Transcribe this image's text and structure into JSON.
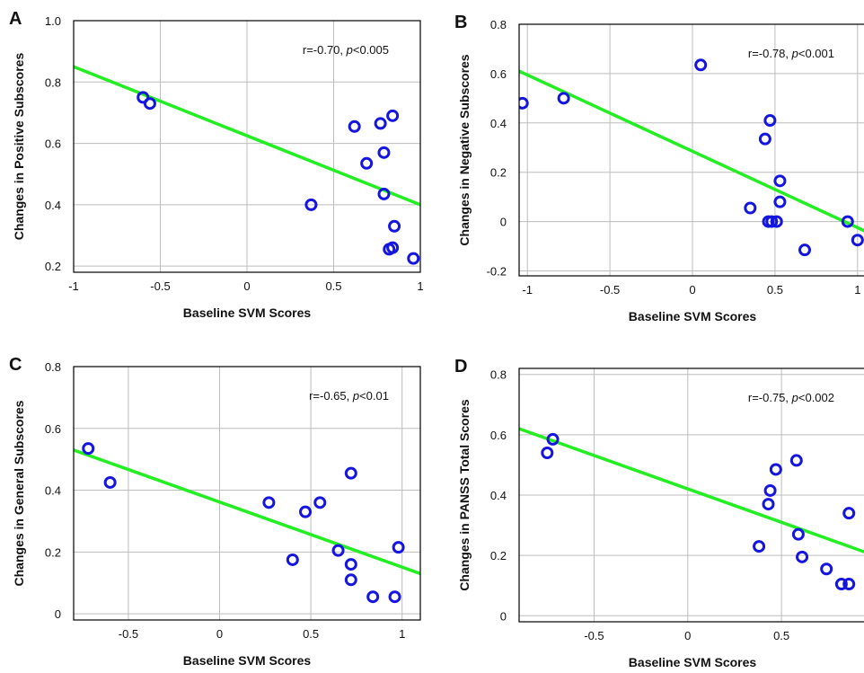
{
  "chart_data": [
    {
      "panel": "A",
      "type": "scatter",
      "xlabel": "Baseline SVM Scores",
      "ylabel": "Changes in Positive Subscores",
      "xlim": [
        -1,
        1
      ],
      "ylim": [
        0.18,
        1.0
      ],
      "xticks": [
        -1,
        -0.5,
        0,
        0.5,
        1
      ],
      "xtick_labels": [
        "-1",
        "-0.5",
        "0",
        "0.5",
        "1"
      ],
      "yticks": [
        0.2,
        0.4,
        0.6,
        0.8,
        1.0
      ],
      "ytick_labels": [
        "0.2",
        "0.4",
        "0.6",
        "0.8",
        "1.0"
      ],
      "annotation_r": "r=-0.70, ",
      "annotation_p": "p",
      "annotation_rest": "<0.005",
      "grid": true,
      "points": [
        [
          -0.6,
          0.75
        ],
        [
          -0.56,
          0.73
        ],
        [
          0.37,
          0.4
        ],
        [
          0.62,
          0.655
        ],
        [
          0.69,
          0.535
        ],
        [
          0.77,
          0.665
        ],
        [
          0.79,
          0.57
        ],
        [
          0.79,
          0.435
        ],
        [
          0.84,
          0.69
        ],
        [
          0.85,
          0.33
        ],
        [
          0.82,
          0.255
        ],
        [
          0.84,
          0.26
        ],
        [
          0.96,
          0.225
        ]
      ],
      "fit_line": [
        [
          -1,
          0.85
        ],
        [
          1,
          0.4
        ]
      ],
      "point_color": "#1515e0",
      "line_color": "#22ee22"
    },
    {
      "panel": "B",
      "type": "scatter",
      "xlabel": "Baseline SVM Scores",
      "ylabel": "Changes in Negative Subscores",
      "xlim": [
        -1.05,
        1.05
      ],
      "ylim": [
        -0.22,
        0.8
      ],
      "xticks": [
        -1,
        -0.5,
        0,
        0.5,
        1
      ],
      "xtick_labels": [
        "-1",
        "-0.5",
        "0",
        "0.5",
        "1"
      ],
      "yticks": [
        -0.2,
        0,
        0.2,
        0.4,
        0.6,
        0.8
      ],
      "ytick_labels": [
        "-0.2",
        "0",
        "0.2",
        "0.4",
        "0.6",
        "0.8"
      ],
      "annotation_r": "r=-0.78, ",
      "annotation_p": "p",
      "annotation_rest": "<0.001",
      "grid": true,
      "points": [
        [
          -1.03,
          0.48
        ],
        [
          -0.78,
          0.5
        ],
        [
          0.05,
          0.635
        ],
        [
          0.47,
          0.41
        ],
        [
          0.44,
          0.335
        ],
        [
          0.53,
          0.165
        ],
        [
          0.53,
          0.08
        ],
        [
          0.35,
          0.055
        ],
        [
          0.46,
          0.0
        ],
        [
          0.48,
          0.0
        ],
        [
          0.51,
          0.0
        ],
        [
          0.68,
          -0.115
        ],
        [
          0.94,
          0.0
        ],
        [
          1.0,
          -0.075
        ]
      ],
      "fit_line": [
        [
          -1.05,
          0.61
        ],
        [
          1.05,
          -0.04
        ]
      ],
      "point_color": "#1515e0",
      "line_color": "#22ee22"
    },
    {
      "panel": "C",
      "type": "scatter",
      "xlabel": "Baseline SVM Scores",
      "ylabel": "Changes in General Subscores",
      "xlim": [
        -0.8,
        1.1
      ],
      "ylim": [
        -0.02,
        0.8
      ],
      "xticks": [
        -0.5,
        0,
        0.5,
        1
      ],
      "xtick_labels": [
        "-0.5",
        "0",
        "0.5",
        "1"
      ],
      "yticks": [
        0,
        0.2,
        0.4,
        0.6,
        0.8
      ],
      "ytick_labels": [
        "0",
        "0.2",
        "0.4",
        "0.6",
        "0.8"
      ],
      "annotation_r": "r=-0.65, ",
      "annotation_p": "p",
      "annotation_rest": "<0.01",
      "grid": true,
      "points": [
        [
          -0.72,
          0.535
        ],
        [
          -0.6,
          0.425
        ],
        [
          0.27,
          0.36
        ],
        [
          0.47,
          0.33
        ],
        [
          0.55,
          0.36
        ],
        [
          0.72,
          0.455
        ],
        [
          0.4,
          0.175
        ],
        [
          0.65,
          0.205
        ],
        [
          0.72,
          0.16
        ],
        [
          0.72,
          0.11
        ],
        [
          0.84,
          0.055
        ],
        [
          0.96,
          0.055
        ],
        [
          0.98,
          0.215
        ]
      ],
      "fit_line": [
        [
          -0.8,
          0.53
        ],
        [
          1.1,
          0.13
        ]
      ],
      "point_color": "#1515e0",
      "line_color": "#22ee22"
    },
    {
      "panel": "D",
      "type": "scatter",
      "xlabel": "Baseline SVM Scores",
      "ylabel": "Changes in PANSS Total Scores",
      "xlim": [
        -0.9,
        0.95
      ],
      "ylim": [
        -0.02,
        0.82
      ],
      "xticks": [
        -0.5,
        0,
        0.5
      ],
      "xtick_labels": [
        "-0.5",
        "0",
        "0.5"
      ],
      "yticks": [
        0,
        0.2,
        0.4,
        0.6,
        0.8
      ],
      "ytick_labels": [
        "0",
        "0.2",
        "0.4",
        "0.6",
        "0.8"
      ],
      "annotation_r": "r=-0.75, ",
      "annotation_p": "p",
      "annotation_rest": "<0.002",
      "grid": true,
      "points": [
        [
          -0.75,
          0.54
        ],
        [
          -0.72,
          0.585
        ],
        [
          0.47,
          0.485
        ],
        [
          0.58,
          0.515
        ],
        [
          0.44,
          0.415
        ],
        [
          0.43,
          0.37
        ],
        [
          0.59,
          0.27
        ],
        [
          0.38,
          0.23
        ],
        [
          0.61,
          0.195
        ],
        [
          0.74,
          0.155
        ],
        [
          0.86,
          0.34
        ],
        [
          0.82,
          0.105
        ],
        [
          0.86,
          0.105
        ]
      ],
      "fit_line": [
        [
          -0.9,
          0.62
        ],
        [
          0.95,
          0.21
        ]
      ],
      "point_color": "#1515e0",
      "line_color": "#22ee22"
    }
  ]
}
